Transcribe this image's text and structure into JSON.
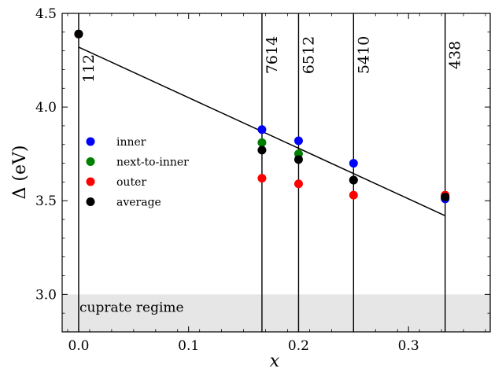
{
  "chart_data": {
    "type": "scatter",
    "title": "",
    "xlabel": "x",
    "ylabel": "Δ (eV)",
    "xlim": [
      -0.015,
      0.375
    ],
    "ylim": [
      2.8,
      4.5
    ],
    "xticks": [
      0.0,
      0.1,
      0.2,
      0.3
    ],
    "xtick_labels": [
      "0.0",
      "0.1",
      "0.2",
      "0.3"
    ],
    "yticks": [
      3.0,
      3.5,
      4.0,
      4.5
    ],
    "ytick_labels": [
      "3.0",
      "3.5",
      "4.0",
      "4.5"
    ],
    "legend_position": "left",
    "series": [
      {
        "name": "inner",
        "color": "#0000ff",
        "x": [
          0.0,
          0.1667,
          0.2,
          0.25,
          0.3333
        ],
        "y": [
          4.39,
          3.88,
          3.82,
          3.7,
          3.51
        ]
      },
      {
        "name": "next-to-inner",
        "color": "#008000",
        "x": [
          0.0,
          0.1667,
          0.2,
          0.25,
          0.3333
        ],
        "y": [
          4.39,
          3.81,
          3.75,
          3.61,
          3.52
        ]
      },
      {
        "name": "outer",
        "color": "#ff0000",
        "x": [
          0.0,
          0.1667,
          0.2,
          0.25,
          0.3333
        ],
        "y": [
          4.39,
          3.62,
          3.59,
          3.53,
          3.53
        ]
      },
      {
        "name": "average",
        "color": "#000000",
        "x": [
          0.0,
          0.1667,
          0.2,
          0.25,
          0.3333
        ],
        "y": [
          4.39,
          3.77,
          3.72,
          3.61,
          3.52
        ]
      }
    ],
    "fit_line": {
      "x": [
        0.0,
        0.3333
      ],
      "y": [
        4.32,
        3.42
      ],
      "color": "#000000"
    },
    "vertical_lines": [
      {
        "x": 0.0,
        "label": "112"
      },
      {
        "x": 0.1667,
        "label": "7614"
      },
      {
        "x": 0.2,
        "label": "6512"
      },
      {
        "x": 0.25,
        "label": "5410"
      },
      {
        "x": 0.3333,
        "label": "438"
      }
    ],
    "shaded_region": {
      "y_from": 2.8,
      "y_to": 3.0,
      "color": "#e6e6e6",
      "label": "cuprate regime"
    }
  }
}
